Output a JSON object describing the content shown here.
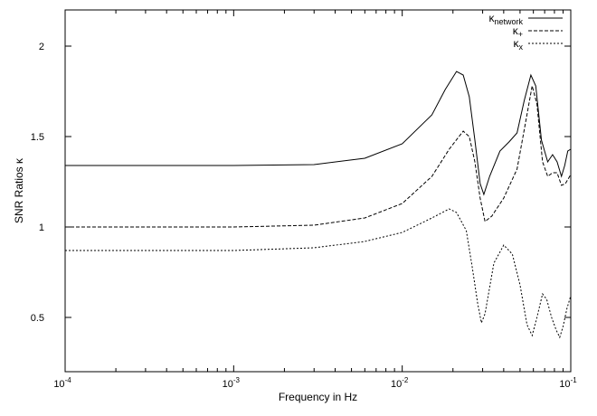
{
  "chart_data": {
    "type": "line",
    "xlabel": "Frequency in Hz",
    "ylabel": "SNR Ratios κ",
    "xscale": "log",
    "xlim": [
      0.0001,
      0.1
    ],
    "ylim": [
      0.2,
      2.2
    ],
    "x_ticks": [
      {
        "base": "10",
        "exp": "-4",
        "value": 0.0001
      },
      {
        "base": "10",
        "exp": "-3",
        "value": 0.001
      },
      {
        "base": "10",
        "exp": "-2",
        "value": 0.01
      },
      {
        "base": "10",
        "exp": "-1",
        "value": 0.1
      }
    ],
    "y_ticks": [
      {
        "label": "0.5",
        "value": 0.5
      },
      {
        "label": "1",
        "value": 1.0
      },
      {
        "label": "1.5",
        "value": 1.5
      },
      {
        "label": "2",
        "value": 2.0
      }
    ],
    "grid": false,
    "legend_position": "top-right",
    "series": [
      {
        "name": "κ",
        "name_subscript": "network",
        "style": "solid",
        "color": "#000000",
        "points": [
          [
            0.0001,
            1.34
          ],
          [
            0.001,
            1.34
          ],
          [
            0.003,
            1.345
          ],
          [
            0.006,
            1.38
          ],
          [
            0.01,
            1.46
          ],
          [
            0.015,
            1.62
          ],
          [
            0.018,
            1.76
          ],
          [
            0.021,
            1.86
          ],
          [
            0.023,
            1.84
          ],
          [
            0.025,
            1.72
          ],
          [
            0.027,
            1.48
          ],
          [
            0.029,
            1.24
          ],
          [
            0.0305,
            1.18
          ],
          [
            0.033,
            1.28
          ],
          [
            0.038,
            1.42
          ],
          [
            0.043,
            1.47
          ],
          [
            0.048,
            1.52
          ],
          [
            0.053,
            1.7
          ],
          [
            0.058,
            1.84
          ],
          [
            0.062,
            1.78
          ],
          [
            0.067,
            1.48
          ],
          [
            0.073,
            1.36
          ],
          [
            0.078,
            1.4
          ],
          [
            0.083,
            1.36
          ],
          [
            0.088,
            1.28
          ],
          [
            0.092,
            1.34
          ],
          [
            0.096,
            1.42
          ],
          [
            0.1,
            1.43
          ]
        ]
      },
      {
        "name": "κ",
        "name_subscript": "+",
        "style": "dashed",
        "color": "#000000",
        "points": [
          [
            0.0001,
            1.0
          ],
          [
            0.001,
            1.0
          ],
          [
            0.003,
            1.01
          ],
          [
            0.006,
            1.05
          ],
          [
            0.01,
            1.13
          ],
          [
            0.015,
            1.28
          ],
          [
            0.019,
            1.43
          ],
          [
            0.023,
            1.53
          ],
          [
            0.025,
            1.5
          ],
          [
            0.027,
            1.36
          ],
          [
            0.029,
            1.16
          ],
          [
            0.031,
            1.03
          ],
          [
            0.034,
            1.06
          ],
          [
            0.04,
            1.16
          ],
          [
            0.048,
            1.32
          ],
          [
            0.054,
            1.58
          ],
          [
            0.059,
            1.78
          ],
          [
            0.063,
            1.68
          ],
          [
            0.068,
            1.36
          ],
          [
            0.073,
            1.28
          ],
          [
            0.078,
            1.3
          ],
          [
            0.083,
            1.3
          ],
          [
            0.088,
            1.23
          ],
          [
            0.093,
            1.24
          ],
          [
            0.1,
            1.29
          ]
        ]
      },
      {
        "name": "κ",
        "name_subscript": "x",
        "style": "dotted",
        "color": "#000000",
        "points": [
          [
            0.0001,
            0.87
          ],
          [
            0.001,
            0.87
          ],
          [
            0.003,
            0.885
          ],
          [
            0.006,
            0.92
          ],
          [
            0.01,
            0.97
          ],
          [
            0.015,
            1.05
          ],
          [
            0.019,
            1.1
          ],
          [
            0.021,
            1.08
          ],
          [
            0.024,
            0.98
          ],
          [
            0.026,
            0.78
          ],
          [
            0.028,
            0.58
          ],
          [
            0.0295,
            0.47
          ],
          [
            0.031,
            0.52
          ],
          [
            0.035,
            0.8
          ],
          [
            0.04,
            0.9
          ],
          [
            0.045,
            0.85
          ],
          [
            0.05,
            0.68
          ],
          [
            0.055,
            0.46
          ],
          [
            0.059,
            0.4
          ],
          [
            0.063,
            0.5
          ],
          [
            0.068,
            0.63
          ],
          [
            0.072,
            0.6
          ],
          [
            0.077,
            0.5
          ],
          [
            0.082,
            0.43
          ],
          [
            0.086,
            0.39
          ],
          [
            0.09,
            0.45
          ],
          [
            0.095,
            0.55
          ],
          [
            0.1,
            0.62
          ]
        ]
      }
    ]
  }
}
